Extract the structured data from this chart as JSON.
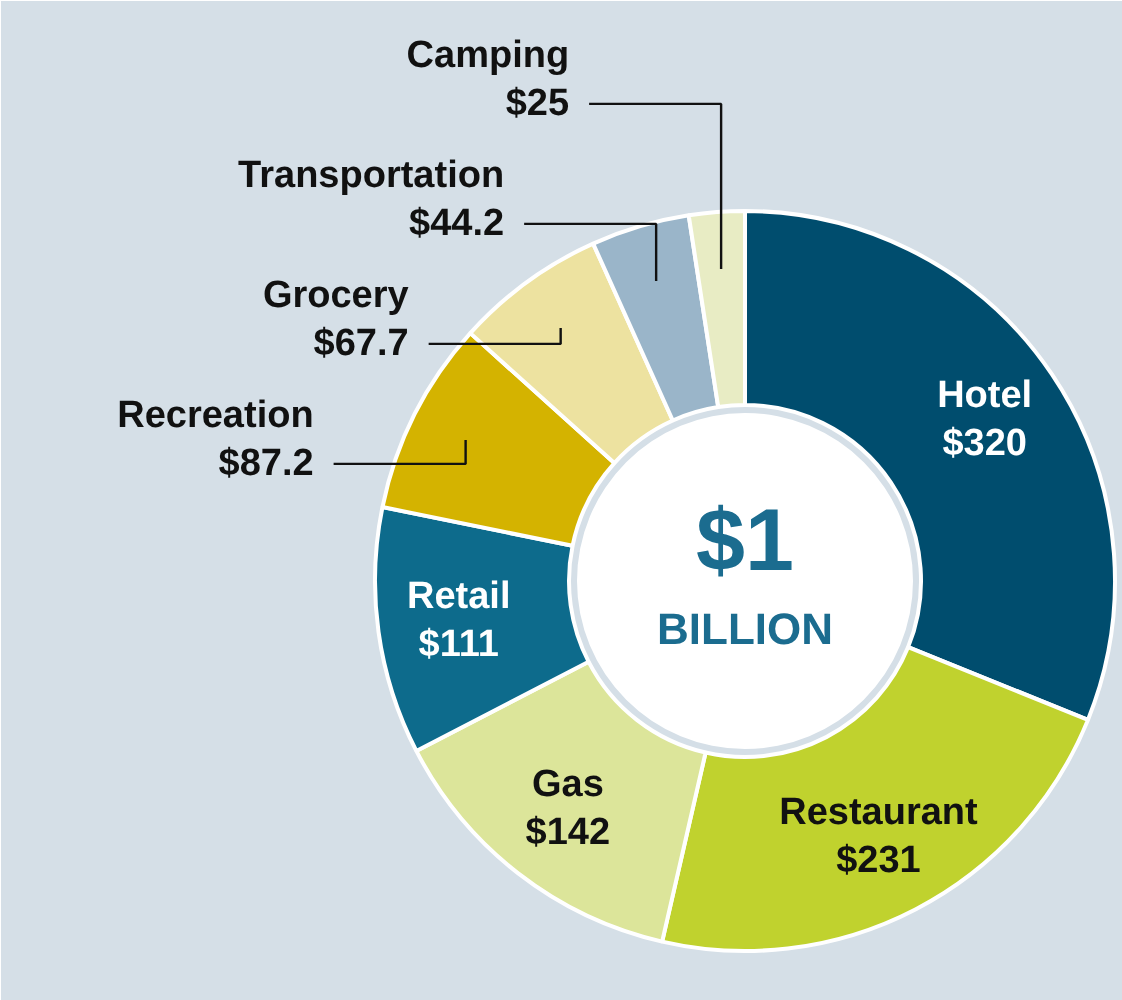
{
  "chart_data": {
    "type": "donut",
    "categories": [
      "Hotel",
      "Restaurant",
      "Gas",
      "Retail",
      "Recreation",
      "Grocery",
      "Transportation",
      "Camping"
    ],
    "values": [
      320,
      231,
      142,
      111,
      87.2,
      67.7,
      44.2,
      25
    ],
    "value_labels": [
      "$320",
      "$231",
      "$142",
      "$111",
      "$87.2",
      "$67.7",
      "$44.2",
      "$25"
    ],
    "colors": [
      "#004d6e",
      "#c0d22e",
      "#dce59a",
      "#0d6b8c",
      "#d4b300",
      "#ede2a0",
      "#9ab5c9",
      "#e8ecc4"
    ],
    "annotations": [
      "$1",
      "BILLION"
    ]
  }
}
